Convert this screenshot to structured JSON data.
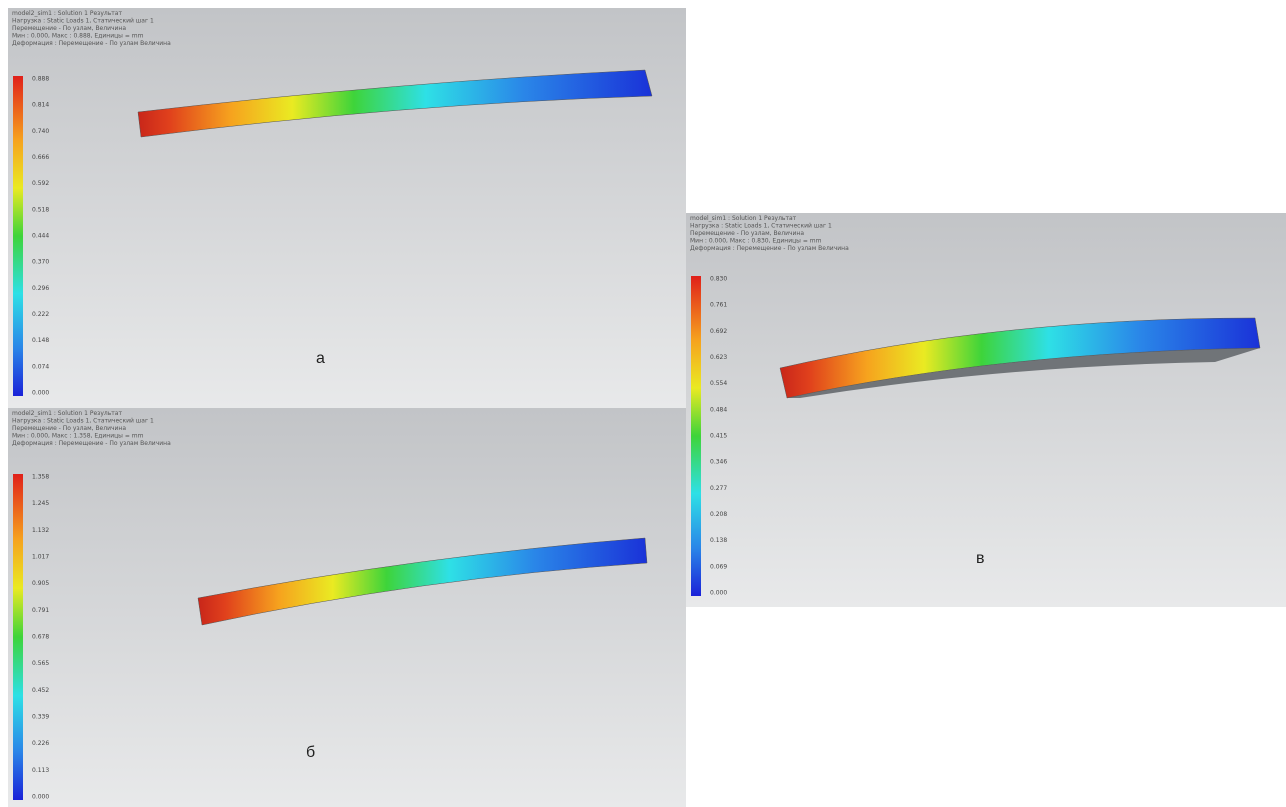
{
  "panels": [
    {
      "letter": "а",
      "header": [
        "model2_sim1 : Solution 1 Результат",
        "Нагрузка : Static Loads 1, Статический шаг 1",
        "Перемещение - По узлам, Величина",
        "Мин : 0.000, Макс : 0.888, Единицы = mm",
        "Деформация : Перемещение - По узлам Величина"
      ],
      "legend": [
        "0.888",
        "0.814",
        "0.740",
        "0.666",
        "0.592",
        "0.518",
        "0.444",
        "0.370",
        "0.296",
        "0.222",
        "0.148",
        "0.074",
        "0.000"
      ]
    },
    {
      "letter": "б",
      "header": [
        "model2_sim1 : Solution 1 Результат",
        "Нагрузка : Static Loads 1, Статический шаг 1",
        "Перемещение - По узлам, Величина",
        "Мин : 0.000, Макс : 1.358, Единицы = mm",
        "Деформация : Перемещение - По узлам Величина"
      ],
      "legend": [
        "1.358",
        "1.245",
        "1.132",
        "1.017",
        "0.905",
        "0.791",
        "0.678",
        "0.565",
        "0.452",
        "0.339",
        "0.226",
        "0.113",
        "0.000"
      ]
    },
    {
      "letter": "в",
      "header": [
        "model_sim1 : Solution 1 Результат",
        "Нагрузка : Static Loads 1, Статический шаг 1",
        "Перемещение - По узлам, Величина",
        "Мин : 0.000, Макс : 0.830, Единицы = mm",
        "Деформация : Перемещение - По узлам Величина"
      ],
      "legend": [
        "0.830",
        "0.761",
        "0.692",
        "0.623",
        "0.554",
        "0.484",
        "0.415",
        "0.346",
        "0.277",
        "0.208",
        "0.138",
        "0.069",
        "0.000"
      ]
    }
  ]
}
